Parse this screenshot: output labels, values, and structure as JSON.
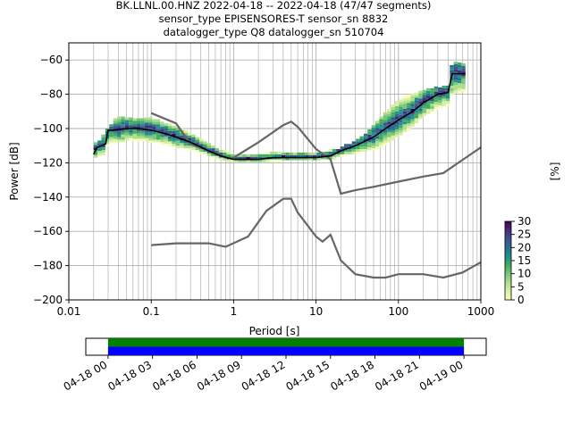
{
  "title_lines": [
    "BK.LLNL.00.HNZ   2022-04-18 -- 2022-04-18  (47/47 segments)",
    "sensor_type EPISENSORES-T sensor_sn 8832",
    "datalogger_type Q8 datalogger_sn 510704"
  ],
  "chart_data": [
    {
      "type": "heatmap",
      "subtype": "probabilistic-power-spectral-density",
      "xlabel": "Period [s]",
      "ylabel": "Power [dB]",
      "x_scale": "log",
      "xlim": [
        0.01,
        1000
      ],
      "ylim": [
        -200,
        -50
      ],
      "x_ticks": [
        0.01,
        0.1,
        1,
        10,
        100,
        1000
      ],
      "x_tick_labels": [
        "0.01",
        "0.1",
        "1",
        "10",
        "100",
        "1000"
      ],
      "y_ticks": [
        -200,
        -180,
        -160,
        -140,
        -120,
        -100,
        -80,
        -60
      ],
      "y_tick_labels": [
        "−200",
        "−180",
        "−160",
        "−140",
        "−120",
        "−100",
        "−80",
        "−60"
      ],
      "grid": true,
      "colorbar": {
        "label": "[%]",
        "range": [
          0,
          30
        ],
        "ticks": [
          0,
          5,
          10,
          15,
          20,
          25,
          30
        ],
        "tick_labels": [
          "0",
          "5",
          "10",
          "15",
          "20",
          "25",
          "30"
        ],
        "colors": [
          "#f7fcb9",
          "#d9f0a3",
          "#addd8e",
          "#78c679",
          "#41ab5d",
          "#21908c",
          "#2c6d8f",
          "#3b528b",
          "#472d7b",
          "#440154"
        ]
      },
      "mode_curve": {
        "color": "#000000",
        "x": [
          0.02,
          0.022,
          0.025,
          0.028,
          0.03,
          0.035,
          0.05,
          0.07,
          0.1,
          0.15,
          0.2,
          0.3,
          0.5,
          0.7,
          1,
          1.5,
          2,
          3,
          5,
          7,
          10,
          15,
          20,
          30,
          50,
          70,
          100,
          150,
          200,
          300,
          400,
          450,
          500,
          600,
          650
        ],
        "y": [
          -115,
          -111,
          -110,
          -109,
          -101,
          -101,
          -100,
          -100,
          -101,
          -103,
          -105,
          -108,
          -113,
          -116,
          -118,
          -118,
          -118,
          -117,
          -117,
          -117,
          -117,
          -116,
          -113,
          -110,
          -105,
          -100,
          -95,
          -90,
          -85,
          -80,
          -79,
          -68,
          -68,
          -68,
          -68
        ]
      },
      "noise_models": {
        "color": "#666666",
        "curves": [
          {
            "x": [
              0.1,
              0.2,
              0.3,
              0.5,
              0.8,
              1,
              2,
              4,
              5,
              6,
              10,
              15,
              20,
              30,
              50,
              100,
              200,
              350,
              1000
            ],
            "y": [
              -91,
              -97,
              -109,
              -113,
              -117,
              -117,
              -108,
              -98,
              -96,
              -99,
              -112,
              -118,
              -138,
              -136,
              -134,
              -131,
              -128,
              -126,
              -111
            ]
          },
          {
            "x": [
              0.1,
              0.2,
              0.3,
              0.5,
              0.8,
              1.5,
              2.5,
              4,
              5,
              6,
              10,
              12,
              15,
              20,
              30,
              50,
              70,
              100,
              200,
              350,
              600,
              1000
            ],
            "y": [
              -168,
              -167,
              -167,
              -167,
              -169,
              -163,
              -148,
              -141,
              -141,
              -149,
              -163,
              -166,
              -162,
              -177,
              -185,
              -187,
              -187,
              -185,
              -185,
              -187,
              -184,
              -178
            ]
          }
        ]
      },
      "density_band": {
        "x": [
          0.02,
          0.025,
          0.03,
          0.04,
          0.06,
          0.08,
          0.1,
          0.15,
          0.2,
          0.3,
          0.5,
          0.8,
          1,
          2,
          4,
          8,
          12,
          20,
          40,
          70,
          100,
          200,
          400,
          450,
          500,
          650
        ],
        "y_low": [
          -123,
          -121,
          -117,
          -114,
          -112,
          -112,
          -113,
          -114,
          -115,
          -116,
          -118,
          -120,
          -121,
          -121,
          -120,
          -120,
          -120,
          -121,
          -120,
          -115,
          -110,
          -100,
          -95,
          -92,
          -90,
          -88
        ],
        "y_high": [
          -110,
          -106,
          -100,
          -93,
          -94,
          -94,
          -95,
          -97,
          -99,
          -104,
          -109,
          -113,
          -116,
          -115,
          -114,
          -114,
          -114,
          -112,
          -104,
          -91,
          -84,
          -78,
          -76,
          -62,
          -62,
          -62
        ]
      }
    },
    {
      "type": "timeline",
      "x_tick_labels": [
        "04-18 00",
        "04-18 03",
        "04-18 06",
        "04-18 09",
        "04-18 12",
        "04-18 15",
        "04-18 18",
        "04-18 21",
        "04-19 00"
      ],
      "xlim_hours": [
        -1.5,
        25.5
      ],
      "bars": [
        {
          "start_hour": 0,
          "end_hour": 24,
          "color": "#008000"
        },
        {
          "start_hour": 0,
          "end_hour": 24,
          "color": "#0000ff"
        }
      ]
    }
  ]
}
